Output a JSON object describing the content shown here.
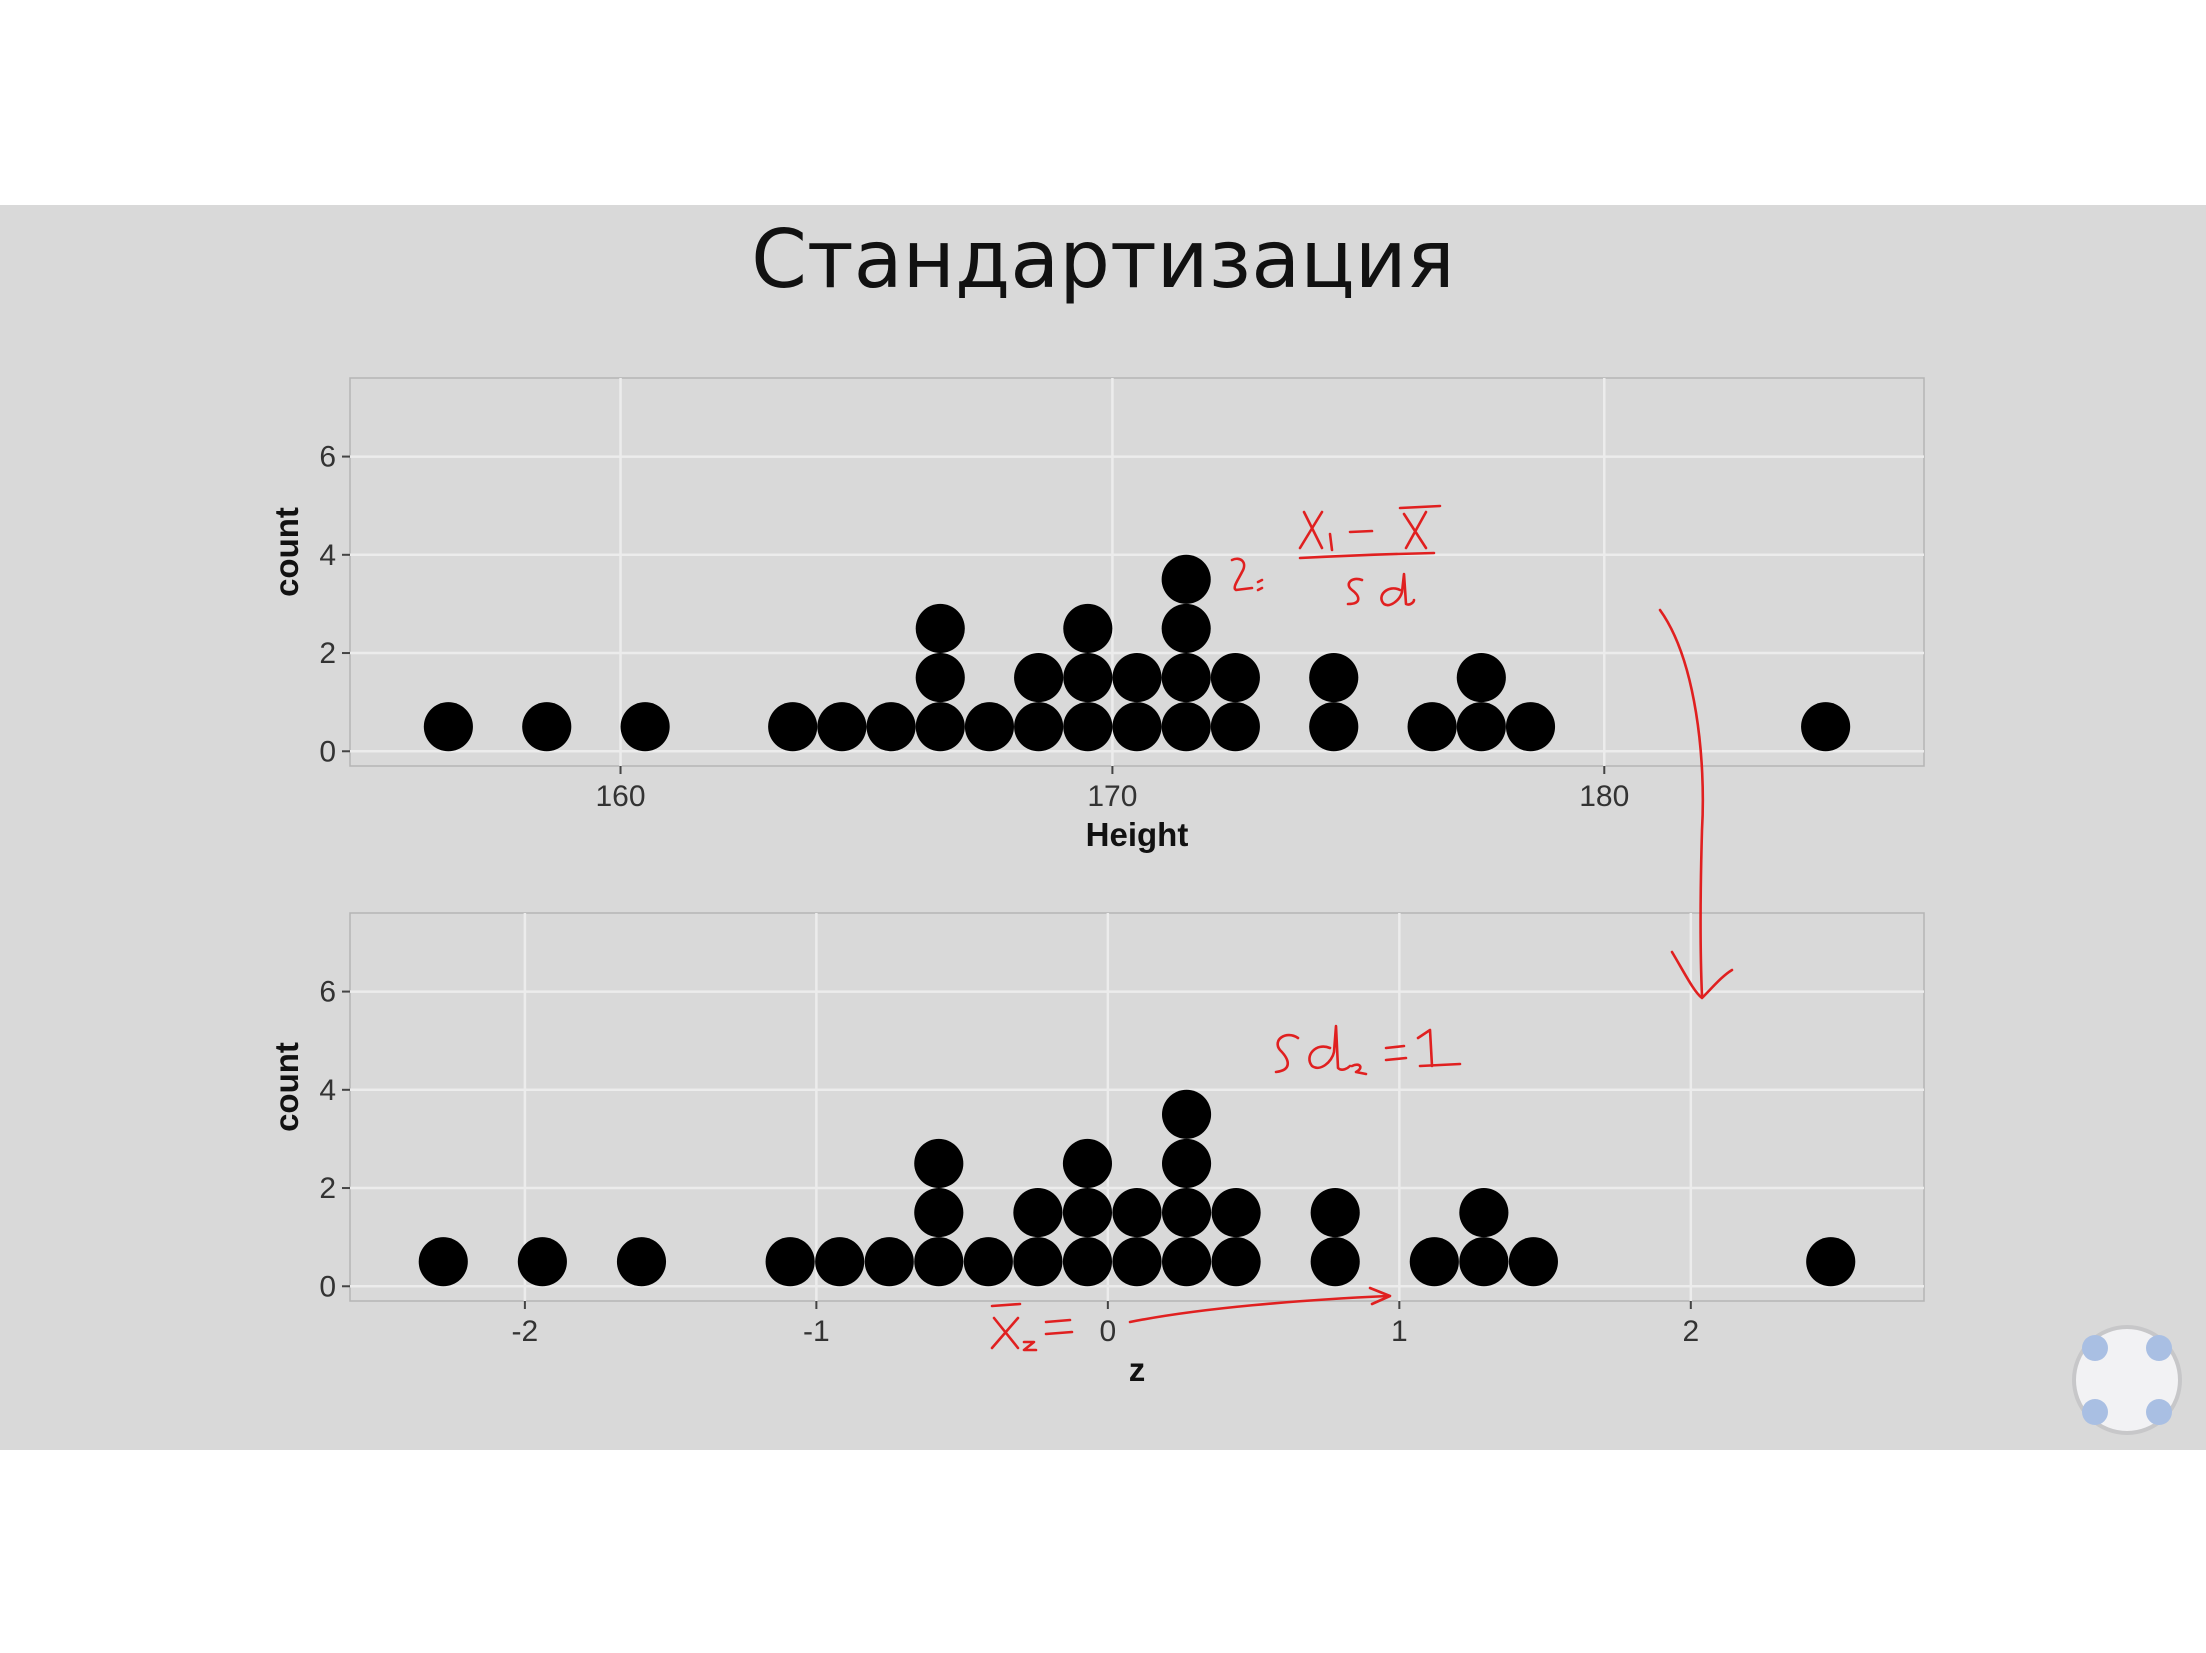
{
  "slide": {
    "title": "Стандартизация"
  },
  "chart_data": [
    {
      "type": "scatter",
      "style": "dotplot",
      "xlabel": "Height",
      "ylabel": "count",
      "xlim": [
        154.5,
        186.5
      ],
      "ylim": [
        -0.3,
        7.6
      ],
      "xticks": [
        160,
        170,
        180
      ],
      "yticks": [
        0,
        2,
        4,
        6
      ],
      "grid": true,
      "columns": [
        {
          "x": 156.5,
          "count": 1
        },
        {
          "x": 158.5,
          "count": 1
        },
        {
          "x": 160.5,
          "count": 1
        },
        {
          "x": 163.5,
          "count": 1
        },
        {
          "x": 164.5,
          "count": 1
        },
        {
          "x": 165.5,
          "count": 1
        },
        {
          "x": 166.5,
          "count": 3
        },
        {
          "x": 167.5,
          "count": 1
        },
        {
          "x": 168.5,
          "count": 2
        },
        {
          "x": 169.5,
          "count": 3
        },
        {
          "x": 170.5,
          "count": 2
        },
        {
          "x": 171.5,
          "count": 4
        },
        {
          "x": 172.5,
          "count": 2
        },
        {
          "x": 174.5,
          "count": 2
        },
        {
          "x": 176.5,
          "count": 1
        },
        {
          "x": 177.5,
          "count": 2
        },
        {
          "x": 178.5,
          "count": 1
        },
        {
          "x": 184.5,
          "count": 1
        }
      ]
    },
    {
      "type": "scatter",
      "style": "dotplot",
      "xlabel": "z",
      "ylabel": "count",
      "xlim": [
        -2.6,
        2.8
      ],
      "ylim": [
        -0.3,
        7.6
      ],
      "xticks": [
        -2,
        -1,
        0,
        1,
        2
      ],
      "yticks": [
        0,
        2,
        4,
        6
      ],
      "grid": true,
      "columns": [
        {
          "x": -2.28,
          "count": 1
        },
        {
          "x": -1.94,
          "count": 1
        },
        {
          "x": -1.6,
          "count": 1
        },
        {
          "x": -1.09,
          "count": 1
        },
        {
          "x": -0.92,
          "count": 1
        },
        {
          "x": -0.75,
          "count": 1
        },
        {
          "x": -0.58,
          "count": 3
        },
        {
          "x": -0.41,
          "count": 1
        },
        {
          "x": -0.24,
          "count": 2
        },
        {
          "x": -0.07,
          "count": 3
        },
        {
          "x": 0.1,
          "count": 2
        },
        {
          "x": 0.27,
          "count": 4
        },
        {
          "x": 0.44,
          "count": 2
        },
        {
          "x": 0.78,
          "count": 2
        },
        {
          "x": 1.12,
          "count": 1
        },
        {
          "x": 1.29,
          "count": 2
        },
        {
          "x": 1.46,
          "count": 1
        },
        {
          "x": 2.48,
          "count": 1
        }
      ]
    }
  ],
  "annotations": {
    "formula_lhs": "zᵢ=",
    "formula_numerator": "Xᵢ − X̄",
    "formula_denominator": "sd",
    "sd_note": "sd_z = 1",
    "mean_note": "X̄_z = 0"
  },
  "colors": {
    "panel": "#d9d9d9",
    "grid": "#ececec",
    "dot": "#000000",
    "ink": "#e02020"
  },
  "icons": {
    "badge": "settings-badge-icon"
  }
}
